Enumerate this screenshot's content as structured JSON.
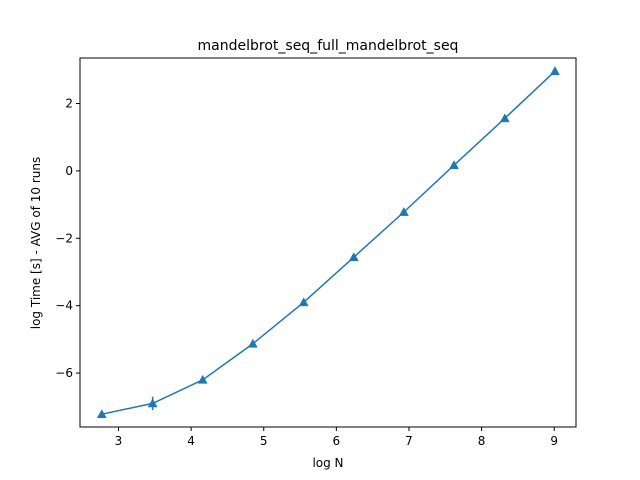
{
  "chart_data": {
    "type": "line",
    "title": "mandelbrot_seq_full_mandelbrot_seq",
    "xlabel": "log N",
    "ylabel": "log Time  [s] - AVG of 10 runs",
    "xlim": [
      2.47,
      9.3
    ],
    "ylim": [
      -7.6,
      3.35
    ],
    "xticks": [
      3,
      4,
      5,
      6,
      7,
      8,
      9
    ],
    "yticks": [
      -6,
      -4,
      -2,
      0,
      2
    ],
    "ytick_labels": [
      "−6",
      "−4",
      "−2",
      "0",
      "2"
    ],
    "grid": false,
    "marker": "triangle-up",
    "colors": {
      "series": "#1f77b4"
    },
    "series": [
      {
        "x": [
          2.77,
          3.47,
          4.16,
          4.85,
          5.55,
          6.24,
          6.93,
          7.62,
          8.32,
          9.01
        ],
        "y": [
          -7.22,
          -6.9,
          -6.2,
          -5.13,
          -3.9,
          -2.56,
          -1.22,
          0.17,
          1.56,
          2.96
        ],
        "error": [
          0.02,
          0.2,
          0.02,
          0.02,
          0.02,
          0.02,
          0.02,
          0.02,
          0.02,
          0.02
        ]
      }
    ]
  }
}
